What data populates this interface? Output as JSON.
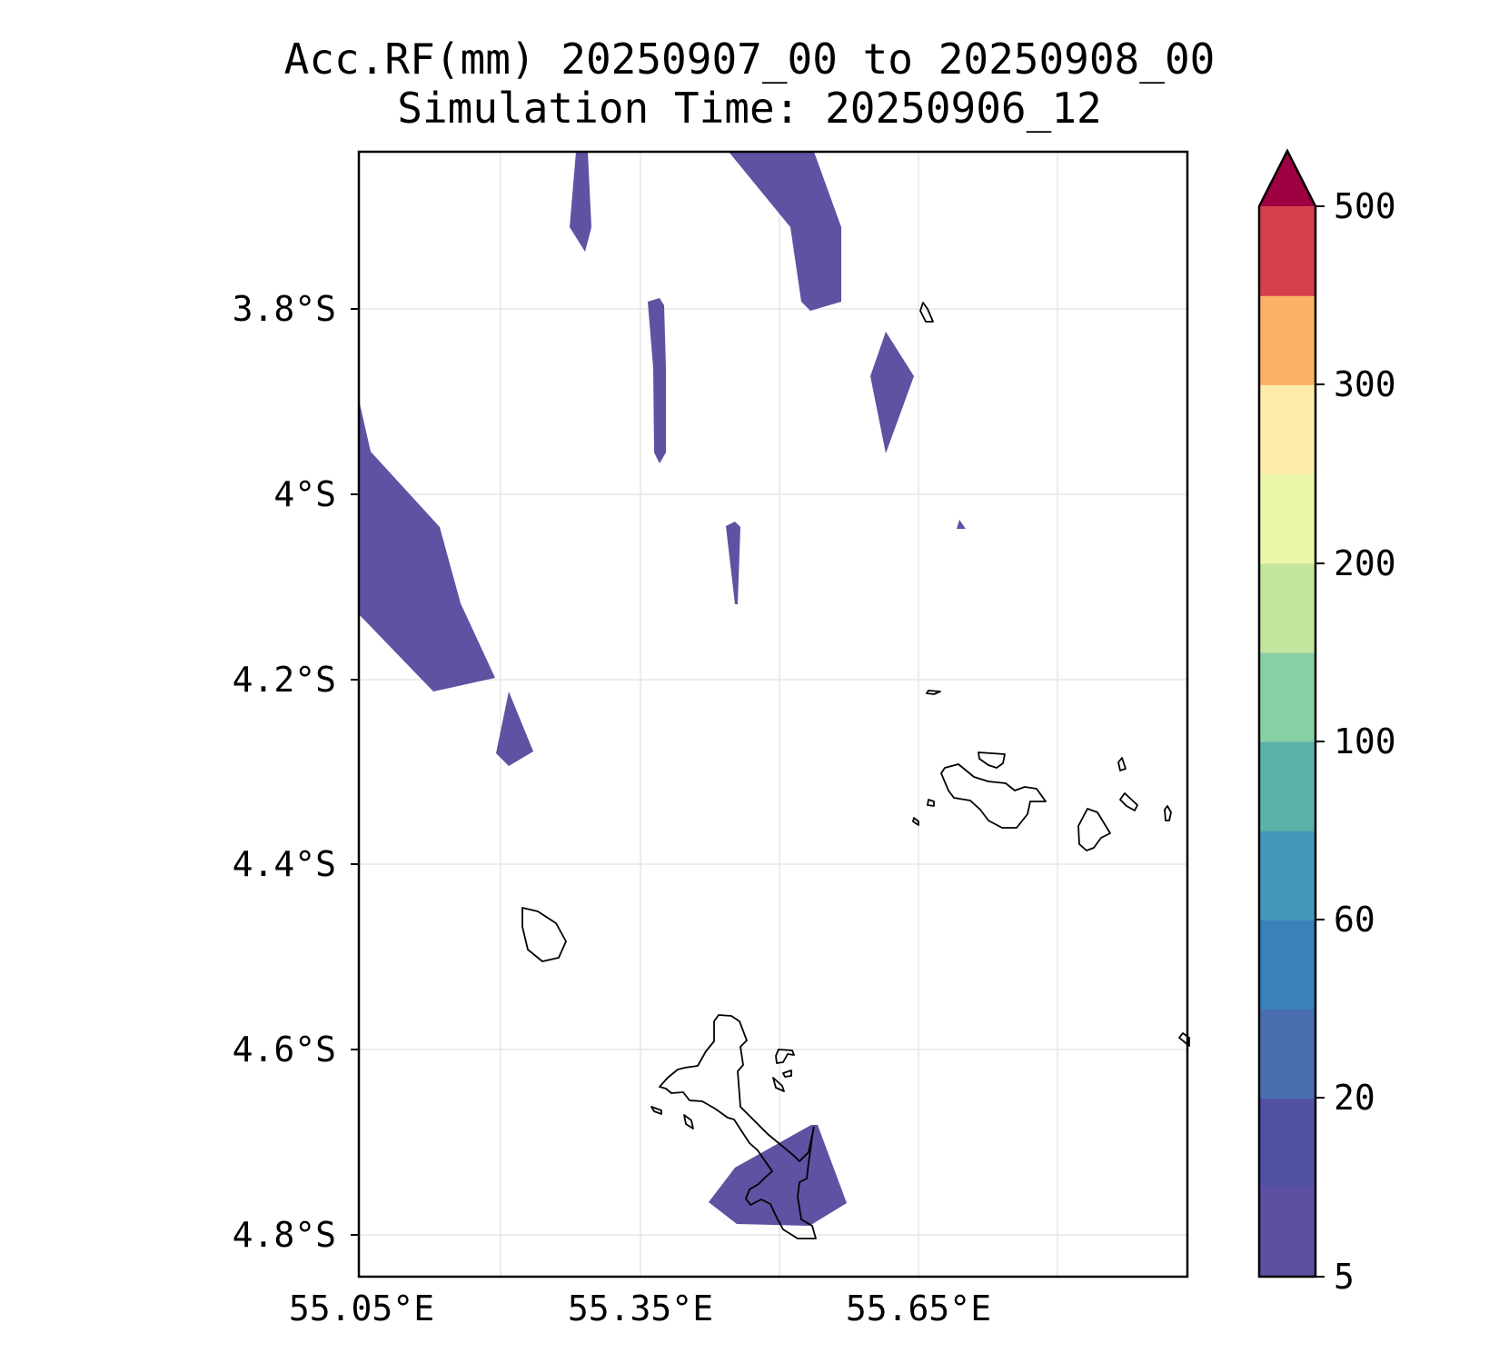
{
  "title": {
    "line1": "Acc.RF(mm) 20250907_00 to 20250908_00",
    "line2": "Simulation Time: 20250906_12"
  },
  "map": {
    "lat_labels": [
      "3.8°S",
      "4°S",
      "4.2°S",
      "4.4°S",
      "4.6°S",
      "4.8°S"
    ],
    "lon_labels": [
      "55.05°E",
      "55.35°E",
      "55.65°E"
    ],
    "extent": {
      "lon_min": 55.05,
      "lon_max": 55.94,
      "lat_min": -4.845,
      "lat_max": -3.63
    },
    "rain_fill_color": "#5e52a3",
    "coastline_color": "#000000"
  },
  "colorbar": {
    "tick_labels": [
      "5",
      "20",
      "60",
      "100",
      "200",
      "300",
      "500"
    ],
    "colors": [
      "#5e4fa2",
      "#5150a3",
      "#4a6db0",
      "#3881b9",
      "#4499bb",
      "#5cb1a9",
      "#88cfa4",
      "#c3e69e",
      "#ecf6a9",
      "#fdecab",
      "#fbb268",
      "#d6404e",
      "#9e0142"
    ],
    "extend": "max"
  }
}
